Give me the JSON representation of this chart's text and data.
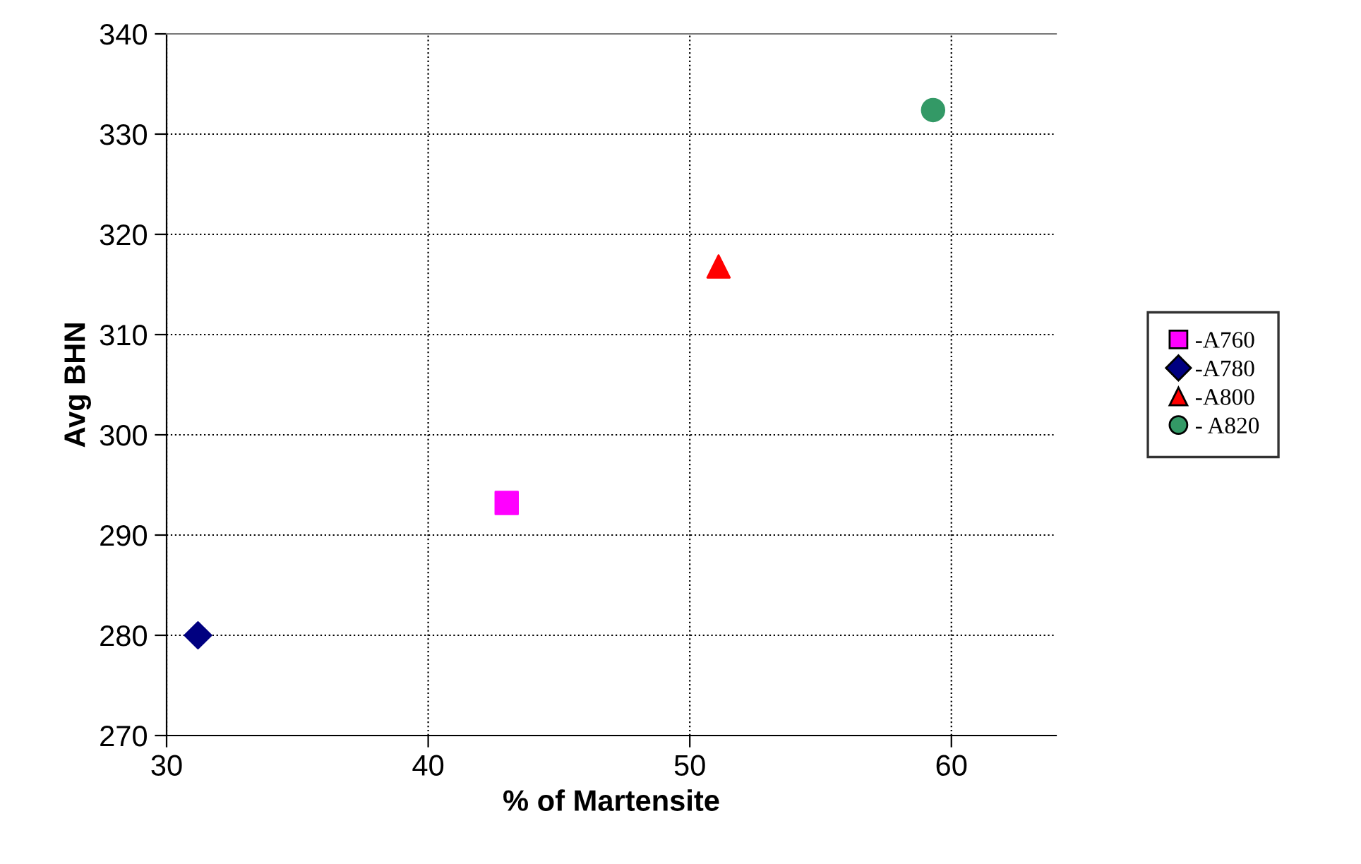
{
  "chart_data": {
    "type": "scatter",
    "xlabel": "% of Martensite",
    "ylabel": "Avg BHN",
    "xlim": [
      30,
      64
    ],
    "xticks": [
      30,
      40,
      50,
      60
    ],
    "ylim": [
      270,
      340
    ],
    "yticks": [
      270,
      280,
      290,
      300,
      310,
      320,
      330,
      340
    ],
    "grid": true,
    "legend": "right",
    "series": [
      {
        "name": "-A760",
        "color": "#ff00ff",
        "marker": "square",
        "x": [
          43.0
        ],
        "values": [
          293.2
        ]
      },
      {
        "name": "-A780",
        "color": "#000080",
        "marker": "diamond",
        "x": [
          31.2
        ],
        "values": [
          280.0
        ]
      },
      {
        "name": "-A800",
        "color": "#ff0000",
        "marker": "triangle",
        "x": [
          51.1
        ],
        "values": [
          316.8
        ]
      },
      {
        "name": "- A820",
        "color": "#339966",
        "marker": "circle",
        "x": [
          59.3
        ],
        "values": [
          332.4
        ]
      }
    ]
  }
}
